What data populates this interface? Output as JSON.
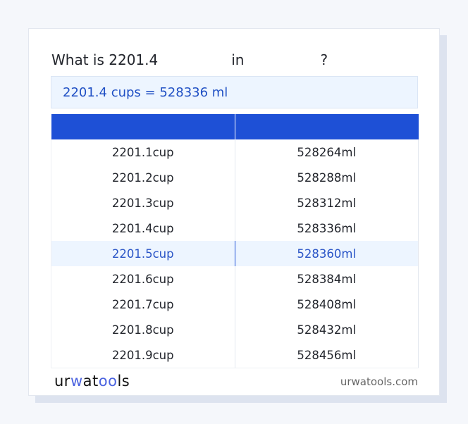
{
  "title": {
    "prefix": "What is 2201.4",
    "middle": "in",
    "suffix": "?"
  },
  "result": "2201.4 cups = 528336 ml",
  "table": {
    "headers": [
      "",
      ""
    ],
    "rows": [
      [
        "2201.1cup",
        "528264ml"
      ],
      [
        "2201.2cup",
        "528288ml"
      ],
      [
        "2201.3cup",
        "528312ml"
      ],
      [
        "2201.4cup",
        "528336ml"
      ],
      [
        "2201.5cup",
        "528360ml"
      ],
      [
        "2201.6cup",
        "528384ml"
      ],
      [
        "2201.7cup",
        "528408ml"
      ],
      [
        "2201.8cup",
        "528432ml"
      ],
      [
        "2201.9cup",
        "528456ml"
      ]
    ],
    "highlighted_row": 4
  },
  "footer": {
    "logo": "urwatools",
    "site": "urwatools.com"
  },
  "colors": {
    "accent": "#1e50d6",
    "highlight_bg": "#edf5ff"
  }
}
